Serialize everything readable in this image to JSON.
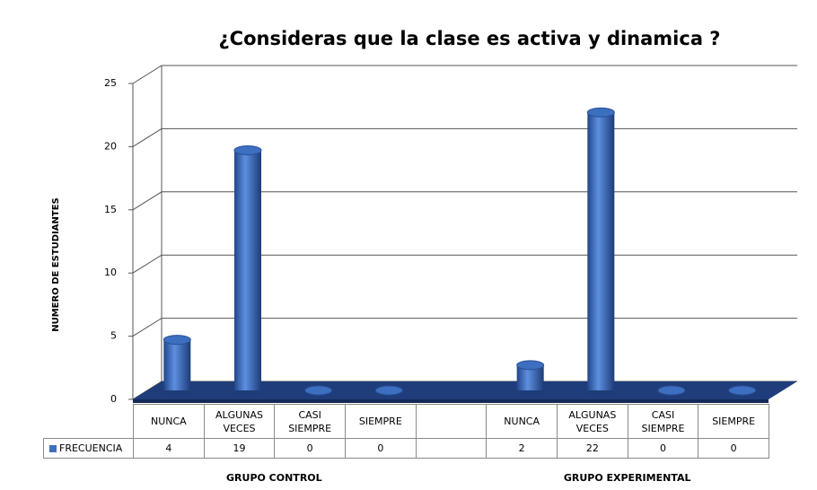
{
  "chart_data": {
    "type": "bar",
    "title": "¿Consideras que la clase es activa y dinamica ?",
    "y_label": "NUMERO DE ESTUDIANTES",
    "categories": [
      "NUNCA",
      "ALGUNAS VECES",
      "CASI SIEMPRE",
      "SIEMPRE",
      null,
      "NUNCA",
      "ALGUNAS VECES",
      "CASI SIEMPRE",
      "SIEMPRE"
    ],
    "groups": [
      "GRUPO CONTROL",
      "GRUPO EXPERIMENTAL"
    ],
    "series": [
      {
        "name": "FRECUENCIA",
        "color": "#3d6fc0",
        "values": [
          4,
          19,
          0,
          0,
          null,
          2,
          22,
          0,
          0
        ]
      }
    ],
    "ylim": [
      0,
      25
    ],
    "yticks": [
      0,
      5,
      10,
      15,
      20,
      25
    ],
    "grid": true
  }
}
